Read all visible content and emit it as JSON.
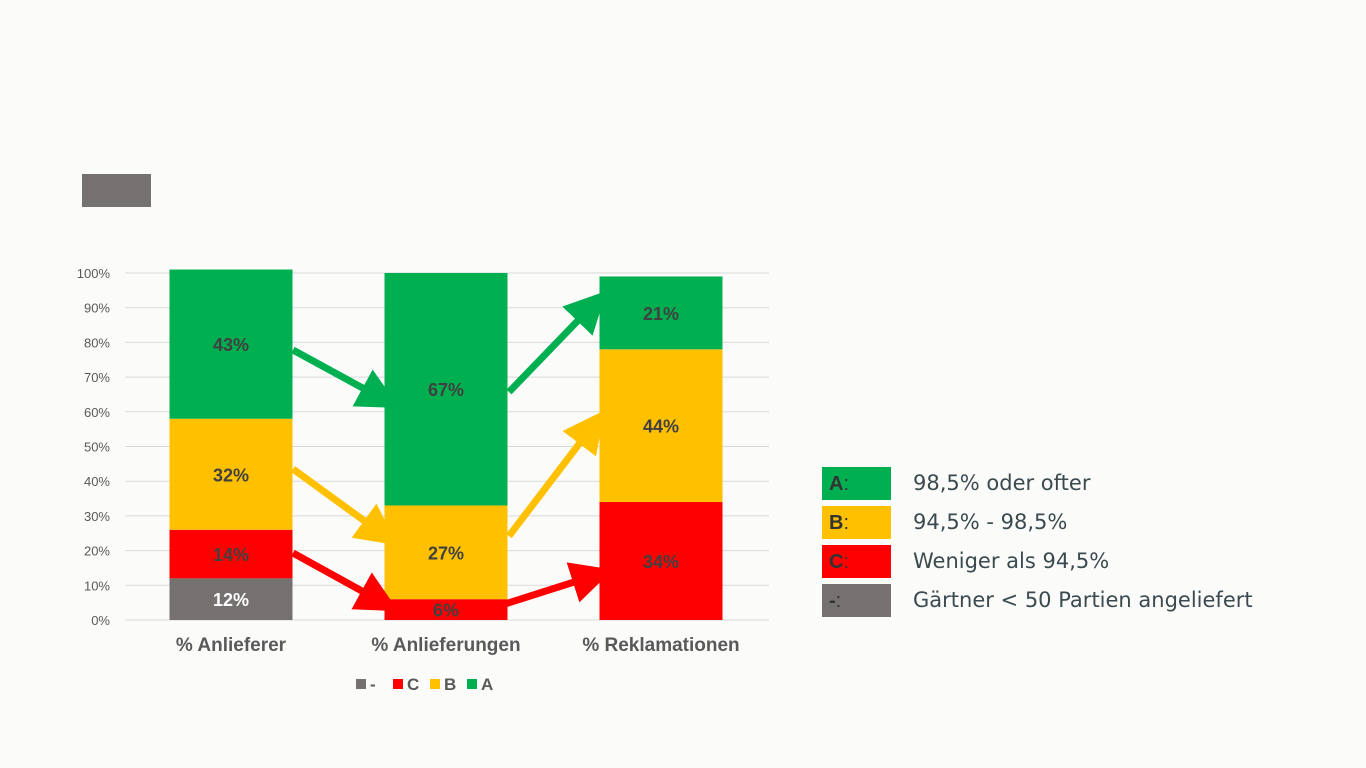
{
  "chart_data": {
    "type": "bar",
    "stacked": true,
    "categories": [
      "% Anlieferer",
      "% Anlieferungen",
      "% Reklamationen"
    ],
    "series": [
      {
        "name": "-",
        "color": "#767171",
        "values": [
          12,
          0,
          0
        ],
        "labels": [
          "12%",
          "",
          ""
        ]
      },
      {
        "name": "C",
        "color": "#ff0000",
        "values": [
          14,
          6,
          34
        ],
        "labels": [
          "14%",
          "6%",
          "34%"
        ]
      },
      {
        "name": "B",
        "color": "#ffc000",
        "values": [
          32,
          27,
          44
        ],
        "labels": [
          "32%",
          "27%",
          "44%"
        ]
      },
      {
        "name": "A",
        "color": "#00b050",
        "values": [
          43,
          67,
          21
        ],
        "labels": [
          "43%",
          "67%",
          "21%"
        ]
      }
    ],
    "ylim": [
      0,
      100
    ],
    "yticks": [
      "0%",
      "10%",
      "20%",
      "30%",
      "40%",
      "50%",
      "60%",
      "70%",
      "80%",
      "90%",
      "100%"
    ],
    "grid": true,
    "legend": "bottom",
    "title": "",
    "xlabel": "",
    "ylabel": ""
  },
  "key": [
    {
      "letter": "A",
      "colon": ":",
      "color": "#00b050",
      "text": "98,5% oder ofter"
    },
    {
      "letter": "B",
      "colon": ":",
      "color": "#ffc000",
      "text": "94,5% - 98,5%"
    },
    {
      "letter": "C",
      "colon": ":",
      "color": "#ff0000",
      "text": "Weniger als 94,5%"
    },
    {
      "letter": "-",
      "colon": ":",
      "color": "#767171",
      "text": "Gärtner < 50 Partien angeliefert"
    }
  ]
}
